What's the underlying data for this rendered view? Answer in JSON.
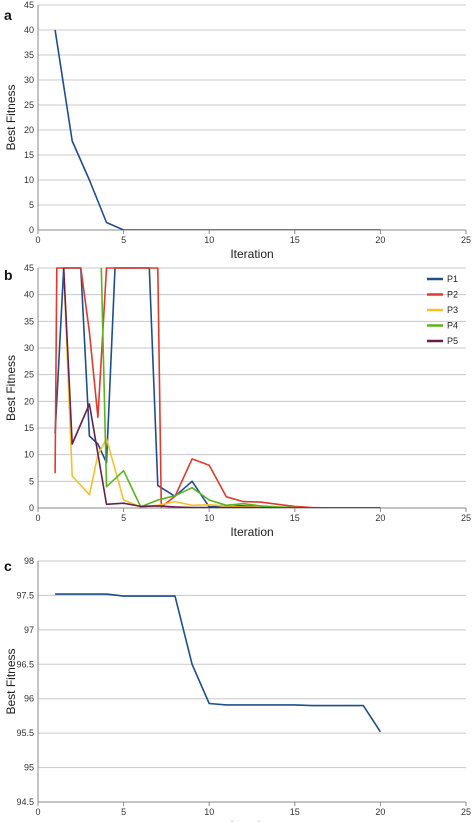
{
  "chart_data": [
    {
      "panel": "a",
      "type": "line",
      "xlabel": "Iteration",
      "ylabel": "Best Fitness",
      "xlim": [
        0,
        25
      ],
      "ylim": [
        0,
        45
      ],
      "xticks": [
        0,
        5,
        10,
        15,
        20,
        25
      ],
      "yticks": [
        0,
        5,
        10,
        15,
        20,
        25,
        30,
        35,
        40,
        45
      ],
      "grid": "horizontal",
      "series": [
        {
          "color": "#1f4e8c",
          "points": [
            [
              1,
              40
            ],
            [
              2,
              17.8
            ],
            [
              3,
              10
            ],
            [
              4,
              1.5
            ],
            [
              5,
              0
            ],
            [
              6,
              0
            ],
            [
              8,
              0
            ],
            [
              10,
              0
            ],
            [
              12,
              0
            ],
            [
              14,
              0
            ],
            [
              16,
              0
            ],
            [
              18,
              0
            ],
            [
              20,
              0
            ]
          ]
        }
      ]
    },
    {
      "panel": "b",
      "type": "line",
      "xlabel": "Iteration",
      "ylabel": "Best Fitness",
      "xlim": [
        0,
        25
      ],
      "ylim": [
        0,
        45
      ],
      "xticks": [
        0,
        5,
        10,
        15,
        20,
        25
      ],
      "yticks": [
        0,
        5,
        10,
        15,
        20,
        25,
        30,
        35,
        40,
        45
      ],
      "grid": "horizontal",
      "legend": "right",
      "series": [
        {
          "name": "P1",
          "color": "#1f4e8c",
          "points": [
            [
              1,
              14
            ],
            [
              1.5,
              45
            ],
            [
              2.5,
              45
            ],
            [
              3,
              13.5
            ],
            [
              3.5,
              12
            ],
            [
              4,
              8.5
            ],
            [
              4.5,
              45
            ],
            [
              6.5,
              45
            ],
            [
              7,
              4.2
            ],
            [
              8,
              2.2
            ],
            [
              9,
              5
            ],
            [
              10,
              0.2
            ],
            [
              11,
              0.5
            ],
            [
              12,
              0.4
            ],
            [
              13,
              0.2
            ],
            [
              14,
              0.1
            ],
            [
              15,
              0.05
            ],
            [
              16,
              0
            ],
            [
              17,
              0
            ],
            [
              18,
              0
            ],
            [
              19,
              0
            ],
            [
              20,
              0
            ]
          ]
        },
        {
          "name": "P2",
          "color": "#e03a2f",
          "points": [
            [
              1,
              6.5
            ],
            [
              1.1,
              45
            ],
            [
              1.9,
              45
            ],
            [
              2,
              45
            ],
            [
              2.5,
              45
            ],
            [
              3,
              33
            ],
            [
              3.5,
              17
            ],
            [
              4,
              45
            ],
            [
              4.5,
              45
            ],
            [
              5,
              45
            ],
            [
              6.5,
              45
            ],
            [
              7,
              45
            ],
            [
              7.2,
              0.2
            ],
            [
              8,
              2.2
            ],
            [
              9,
              9.2
            ],
            [
              10,
              8
            ],
            [
              11,
              2.1
            ],
            [
              12,
              1.2
            ],
            [
              13,
              1.1
            ],
            [
              14,
              0.7
            ],
            [
              15,
              0.3
            ],
            [
              16,
              0.1
            ],
            [
              17,
              0
            ],
            [
              18,
              0
            ],
            [
              19,
              0
            ],
            [
              20,
              0
            ]
          ]
        },
        {
          "name": "P3",
          "color": "#f5c12a",
          "points": [
            [
              1.5,
              45
            ],
            [
              2,
              6
            ],
            [
              3,
              2.5
            ],
            [
              3.5,
              10
            ],
            [
              4,
              13
            ],
            [
              5,
              1.5
            ],
            [
              6,
              0.2
            ],
            [
              7,
              0.5
            ],
            [
              8,
              1.2
            ],
            [
              9,
              0.5
            ],
            [
              10,
              0.6
            ],
            [
              11,
              0.4
            ],
            [
              12,
              0.2
            ],
            [
              13,
              0.2
            ],
            [
              14,
              0.1
            ],
            [
              15,
              0.05
            ],
            [
              16,
              0
            ],
            [
              17,
              0
            ],
            [
              18,
              0
            ],
            [
              19,
              0
            ],
            [
              20,
              0
            ]
          ]
        },
        {
          "name": "P4",
          "color": "#5bb41e",
          "points": [
            [
              3.7,
              45
            ],
            [
              4,
              4
            ],
            [
              5,
              7
            ],
            [
              6,
              0.2
            ],
            [
              7,
              1.5
            ],
            [
              8,
              2.3
            ],
            [
              9,
              3.8
            ],
            [
              10,
              1.5
            ],
            [
              11,
              0.5
            ],
            [
              12,
              0.8
            ],
            [
              13,
              0.4
            ],
            [
              14,
              0.2
            ],
            [
              15,
              0.1
            ],
            [
              16,
              0
            ],
            [
              17,
              0
            ],
            [
              18,
              0
            ],
            [
              19,
              0
            ],
            [
              20,
              0
            ]
          ]
        },
        {
          "name": "P5",
          "color": "#6a1f4a",
          "points": [
            [
              1.5,
              45
            ],
            [
              2,
              12
            ],
            [
              3,
              19.5
            ],
            [
              4,
              0.7
            ],
            [
              5,
              0.9
            ],
            [
              6,
              0.3
            ],
            [
              7,
              0.4
            ],
            [
              8,
              0.2
            ],
            [
              9,
              0.1
            ],
            [
              10,
              0.1
            ],
            [
              11,
              0.1
            ],
            [
              12,
              0.1
            ],
            [
              13,
              0.05
            ],
            [
              14,
              0
            ],
            [
              15,
              0
            ],
            [
              16,
              0
            ],
            [
              17,
              0
            ],
            [
              18,
              0
            ],
            [
              19,
              0
            ],
            [
              20,
              0
            ]
          ]
        }
      ]
    },
    {
      "panel": "c",
      "type": "line",
      "xlabel": "Iteration",
      "ylabel": "Best Fitness",
      "xlim": [
        0,
        25
      ],
      "ylim": [
        94.5,
        98
      ],
      "xticks": [
        0,
        5,
        10,
        15,
        20,
        25
      ],
      "yticks": [
        94.5,
        95,
        95.5,
        96,
        96.5,
        97,
        97.5,
        98
      ],
      "grid": "horizontal",
      "series": [
        {
          "color": "#1f4e8c",
          "points": [
            [
              1,
              97.52
            ],
            [
              4,
              97.52
            ],
            [
              5,
              97.49
            ],
            [
              8,
              97.49
            ],
            [
              9,
              96.5
            ],
            [
              10,
              95.93
            ],
            [
              11,
              95.91
            ],
            [
              15,
              95.91
            ],
            [
              16,
              95.9
            ],
            [
              19,
              95.9
            ],
            [
              20,
              95.52
            ]
          ]
        }
      ]
    }
  ]
}
